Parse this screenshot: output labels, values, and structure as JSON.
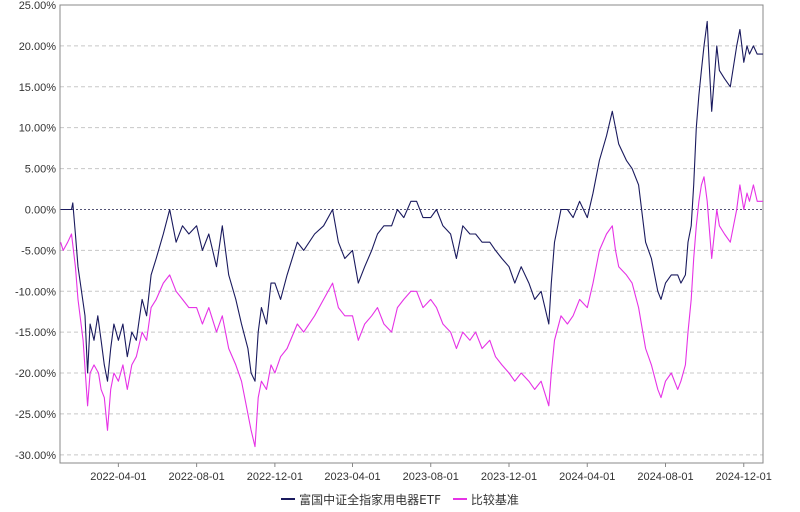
{
  "chart_data": {
    "type": "line",
    "title": "",
    "xlabel": "",
    "ylabel": "",
    "ylim": [
      -31,
      25
    ],
    "y_ticks": [
      25,
      20,
      15,
      10,
      5,
      0,
      -5,
      -10,
      -15,
      -20,
      -25,
      -30
    ],
    "y_tick_labels": [
      "25.00%",
      "20.00%",
      "15.00%",
      "10.00%",
      "5.00%",
      "0.00%",
      "-5.00%",
      "-10.00%",
      "-15.00%",
      "-20.00%",
      "-25.00%",
      "-30.00%"
    ],
    "xlim": [
      "2021-12-31",
      "2024-12-31"
    ],
    "x_tick_labels": [
      "2022-04-01",
      "2022-08-01",
      "2022-12-01",
      "2023-04-01",
      "2023-08-01",
      "2023-12-01",
      "2024-04-01",
      "2024-08-01",
      "2024-12-01"
    ],
    "grid": true,
    "legend_position": "bottom",
    "series": [
      {
        "name": "富国中证全指家用电器ETF",
        "color": "#1a1a5e",
        "points": [
          [
            "2022-01-01",
            0
          ],
          [
            "2022-01-18",
            0
          ],
          [
            "2022-01-20",
            0.8
          ],
          [
            "2022-01-24",
            -3
          ],
          [
            "2022-01-28",
            -7
          ],
          [
            "2022-02-08",
            -13
          ],
          [
            "2022-02-12",
            -20
          ],
          [
            "2022-02-16",
            -14
          ],
          [
            "2022-02-22",
            -16
          ],
          [
            "2022-02-28",
            -13
          ],
          [
            "2022-03-05",
            -16
          ],
          [
            "2022-03-10",
            -19
          ],
          [
            "2022-03-15",
            -21
          ],
          [
            "2022-03-20",
            -17
          ],
          [
            "2022-03-25",
            -14
          ],
          [
            "2022-04-01",
            -16
          ],
          [
            "2022-04-08",
            -14
          ],
          [
            "2022-04-15",
            -18
          ],
          [
            "2022-04-22",
            -15
          ],
          [
            "2022-04-29",
            -16
          ],
          [
            "2022-05-08",
            -11
          ],
          [
            "2022-05-15",
            -13
          ],
          [
            "2022-05-22",
            -8
          ],
          [
            "2022-05-30",
            -6
          ],
          [
            "2022-06-10",
            -3
          ],
          [
            "2022-06-20",
            0
          ],
          [
            "2022-06-30",
            -4
          ],
          [
            "2022-07-10",
            -2
          ],
          [
            "2022-07-20",
            -3
          ],
          [
            "2022-08-01",
            -2
          ],
          [
            "2022-08-10",
            -5
          ],
          [
            "2022-08-20",
            -3
          ],
          [
            "2022-09-01",
            -7
          ],
          [
            "2022-09-10",
            -2
          ],
          [
            "2022-09-20",
            -8
          ],
          [
            "2022-10-01",
            -11
          ],
          [
            "2022-10-10",
            -14
          ],
          [
            "2022-10-20",
            -17
          ],
          [
            "2022-10-25",
            -20
          ],
          [
            "2022-10-31",
            -21
          ],
          [
            "2022-11-05",
            -15
          ],
          [
            "2022-11-10",
            -12
          ],
          [
            "2022-11-18",
            -14
          ],
          [
            "2022-11-25",
            -9
          ],
          [
            "2022-12-01",
            -9
          ],
          [
            "2022-12-10",
            -11
          ],
          [
            "2022-12-20",
            -8
          ],
          [
            "2023-01-05",
            -4
          ],
          [
            "2023-01-15",
            -5
          ],
          [
            "2023-02-01",
            -3
          ],
          [
            "2023-02-15",
            -2
          ],
          [
            "2023-03-01",
            0
          ],
          [
            "2023-03-10",
            -4
          ],
          [
            "2023-03-20",
            -6
          ],
          [
            "2023-04-01",
            -5
          ],
          [
            "2023-04-10",
            -9
          ],
          [
            "2023-04-20",
            -7
          ],
          [
            "2023-05-01",
            -5
          ],
          [
            "2023-05-10",
            -3
          ],
          [
            "2023-05-20",
            -2
          ],
          [
            "2023-06-01",
            -2
          ],
          [
            "2023-06-10",
            0
          ],
          [
            "2023-06-20",
            -1
          ],
          [
            "2023-07-01",
            1
          ],
          [
            "2023-07-10",
            1
          ],
          [
            "2023-07-20",
            -1
          ],
          [
            "2023-08-01",
            -1
          ],
          [
            "2023-08-10",
            0
          ],
          [
            "2023-08-20",
            -2
          ],
          [
            "2023-09-01",
            -3
          ],
          [
            "2023-09-10",
            -6
          ],
          [
            "2023-09-20",
            -2
          ],
          [
            "2023-10-01",
            -3
          ],
          [
            "2023-10-10",
            -3
          ],
          [
            "2023-10-20",
            -4
          ],
          [
            "2023-11-01",
            -4
          ],
          [
            "2023-11-10",
            -5
          ],
          [
            "2023-11-20",
            -6
          ],
          [
            "2023-12-01",
            -7
          ],
          [
            "2023-12-10",
            -9
          ],
          [
            "2023-12-20",
            -7
          ],
          [
            "2024-01-01",
            -9
          ],
          [
            "2024-01-10",
            -11
          ],
          [
            "2024-01-20",
            -10
          ],
          [
            "2024-02-01",
            -14
          ],
          [
            "2024-02-05",
            -9
          ],
          [
            "2024-02-10",
            -4
          ],
          [
            "2024-02-20",
            0
          ],
          [
            "2024-03-01",
            0
          ],
          [
            "2024-03-10",
            -1
          ],
          [
            "2024-03-20",
            1
          ],
          [
            "2024-04-01",
            -1
          ],
          [
            "2024-04-10",
            2
          ],
          [
            "2024-04-20",
            6
          ],
          [
            "2024-05-01",
            9
          ],
          [
            "2024-05-10",
            12
          ],
          [
            "2024-05-15",
            10
          ],
          [
            "2024-05-20",
            8
          ],
          [
            "2024-06-01",
            6
          ],
          [
            "2024-06-10",
            5
          ],
          [
            "2024-06-20",
            3
          ],
          [
            "2024-07-01",
            -4
          ],
          [
            "2024-07-10",
            -6
          ],
          [
            "2024-07-20",
            -10
          ],
          [
            "2024-07-25",
            -11
          ],
          [
            "2024-08-01",
            -9
          ],
          [
            "2024-08-10",
            -8
          ],
          [
            "2024-08-20",
            -8
          ],
          [
            "2024-08-25",
            -9
          ],
          [
            "2024-09-01",
            -8
          ],
          [
            "2024-09-05",
            -4
          ],
          [
            "2024-09-10",
            -2
          ],
          [
            "2024-09-14",
            3
          ],
          [
            "2024-09-18",
            10
          ],
          [
            "2024-09-22",
            14
          ],
          [
            "2024-09-26",
            17
          ],
          [
            "2024-09-30",
            20
          ],
          [
            "2024-10-05",
            23
          ],
          [
            "2024-10-08",
            18
          ],
          [
            "2024-10-12",
            12
          ],
          [
            "2024-10-16",
            16
          ],
          [
            "2024-10-20",
            20
          ],
          [
            "2024-10-24",
            17
          ],
          [
            "2024-11-01",
            16
          ],
          [
            "2024-11-10",
            15
          ],
          [
            "2024-11-20",
            20
          ],
          [
            "2024-11-25",
            22
          ],
          [
            "2024-12-01",
            18
          ],
          [
            "2024-12-06",
            20
          ],
          [
            "2024-12-10",
            19
          ],
          [
            "2024-12-16",
            20
          ],
          [
            "2024-12-22",
            19
          ],
          [
            "2024-12-31",
            19
          ]
        ]
      },
      {
        "name": "比较基准",
        "color": "#e633e6",
        "points": [
          [
            "2022-01-01",
            -4
          ],
          [
            "2022-01-05",
            -5
          ],
          [
            "2022-01-12",
            -4
          ],
          [
            "2022-01-18",
            -3
          ],
          [
            "2022-01-24",
            -7
          ],
          [
            "2022-01-28",
            -11
          ],
          [
            "2022-02-05",
            -16
          ],
          [
            "2022-02-12",
            -24
          ],
          [
            "2022-02-16",
            -20
          ],
          [
            "2022-02-22",
            -19
          ],
          [
            "2022-03-01",
            -20
          ],
          [
            "2022-03-05",
            -22
          ],
          [
            "2022-03-10",
            -23
          ],
          [
            "2022-03-15",
            -27
          ],
          [
            "2022-03-20",
            -22
          ],
          [
            "2022-03-25",
            -20
          ],
          [
            "2022-04-01",
            -21
          ],
          [
            "2022-04-08",
            -19
          ],
          [
            "2022-04-15",
            -22
          ],
          [
            "2022-04-22",
            -19
          ],
          [
            "2022-04-29",
            -18
          ],
          [
            "2022-05-08",
            -15
          ],
          [
            "2022-05-15",
            -16
          ],
          [
            "2022-05-22",
            -12
          ],
          [
            "2022-05-30",
            -11
          ],
          [
            "2022-06-10",
            -9
          ],
          [
            "2022-06-20",
            -8
          ],
          [
            "2022-06-30",
            -10
          ],
          [
            "2022-07-10",
            -11
          ],
          [
            "2022-07-20",
            -12
          ],
          [
            "2022-08-01",
            -12
          ],
          [
            "2022-08-10",
            -14
          ],
          [
            "2022-08-20",
            -12
          ],
          [
            "2022-09-01",
            -15
          ],
          [
            "2022-09-10",
            -13
          ],
          [
            "2022-09-20",
            -17
          ],
          [
            "2022-10-01",
            -19
          ],
          [
            "2022-10-10",
            -21
          ],
          [
            "2022-10-20",
            -25
          ],
          [
            "2022-10-25",
            -27
          ],
          [
            "2022-10-31",
            -29
          ],
          [
            "2022-11-05",
            -23
          ],
          [
            "2022-11-10",
            -21
          ],
          [
            "2022-11-18",
            -22
          ],
          [
            "2022-11-25",
            -19
          ],
          [
            "2022-12-01",
            -20
          ],
          [
            "2022-12-10",
            -18
          ],
          [
            "2022-12-20",
            -17
          ],
          [
            "2023-01-05",
            -14
          ],
          [
            "2023-01-15",
            -15
          ],
          [
            "2023-02-01",
            -13
          ],
          [
            "2023-02-15",
            -11
          ],
          [
            "2023-03-01",
            -9
          ],
          [
            "2023-03-10",
            -12
          ],
          [
            "2023-03-20",
            -13
          ],
          [
            "2023-04-01",
            -13
          ],
          [
            "2023-04-10",
            -16
          ],
          [
            "2023-04-20",
            -14
          ],
          [
            "2023-05-01",
            -13
          ],
          [
            "2023-05-10",
            -12
          ],
          [
            "2023-05-20",
            -14
          ],
          [
            "2023-06-01",
            -15
          ],
          [
            "2023-06-10",
            -12
          ],
          [
            "2023-06-20",
            -11
          ],
          [
            "2023-07-01",
            -10
          ],
          [
            "2023-07-10",
            -10
          ],
          [
            "2023-07-20",
            -12
          ],
          [
            "2023-08-01",
            -11
          ],
          [
            "2023-08-10",
            -12
          ],
          [
            "2023-08-20",
            -14
          ],
          [
            "2023-09-01",
            -15
          ],
          [
            "2023-09-10",
            -17
          ],
          [
            "2023-09-20",
            -15
          ],
          [
            "2023-10-01",
            -16
          ],
          [
            "2023-10-10",
            -15
          ],
          [
            "2023-10-20",
            -17
          ],
          [
            "2023-11-01",
            -16
          ],
          [
            "2023-11-10",
            -18
          ],
          [
            "2023-11-20",
            -19
          ],
          [
            "2023-12-01",
            -20
          ],
          [
            "2023-12-10",
            -21
          ],
          [
            "2023-12-20",
            -20
          ],
          [
            "2024-01-01",
            -21
          ],
          [
            "2024-01-10",
            -22
          ],
          [
            "2024-01-20",
            -21
          ],
          [
            "2024-02-01",
            -24
          ],
          [
            "2024-02-05",
            -20
          ],
          [
            "2024-02-10",
            -16
          ],
          [
            "2024-02-20",
            -13
          ],
          [
            "2024-03-01",
            -14
          ],
          [
            "2024-03-10",
            -13
          ],
          [
            "2024-03-20",
            -11
          ],
          [
            "2024-04-01",
            -12
          ],
          [
            "2024-04-10",
            -9
          ],
          [
            "2024-04-20",
            -5
          ],
          [
            "2024-05-01",
            -3
          ],
          [
            "2024-05-10",
            -2
          ],
          [
            "2024-05-15",
            -5
          ],
          [
            "2024-05-20",
            -7
          ],
          [
            "2024-06-01",
            -8
          ],
          [
            "2024-06-10",
            -9
          ],
          [
            "2024-06-20",
            -12
          ],
          [
            "2024-07-01",
            -17
          ],
          [
            "2024-07-10",
            -19
          ],
          [
            "2024-07-20",
            -22
          ],
          [
            "2024-07-25",
            -23
          ],
          [
            "2024-08-01",
            -21
          ],
          [
            "2024-08-10",
            -20
          ],
          [
            "2024-08-20",
            -22
          ],
          [
            "2024-08-25",
            -21
          ],
          [
            "2024-09-01",
            -19
          ],
          [
            "2024-09-05",
            -15
          ],
          [
            "2024-09-10",
            -11
          ],
          [
            "2024-09-14",
            -6
          ],
          [
            "2024-09-18",
            -2
          ],
          [
            "2024-09-22",
            1
          ],
          [
            "2024-09-26",
            3
          ],
          [
            "2024-09-30",
            4
          ],
          [
            "2024-10-05",
            1
          ],
          [
            "2024-10-08",
            -2
          ],
          [
            "2024-10-12",
            -6
          ],
          [
            "2024-10-16",
            -3
          ],
          [
            "2024-10-20",
            0
          ],
          [
            "2024-10-24",
            -2
          ],
          [
            "2024-11-01",
            -3
          ],
          [
            "2024-11-10",
            -4
          ],
          [
            "2024-11-20",
            0
          ],
          [
            "2024-11-25",
            3
          ],
          [
            "2024-12-01",
            0
          ],
          [
            "2024-12-06",
            2
          ],
          [
            "2024-12-10",
            1
          ],
          [
            "2024-12-16",
            3
          ],
          [
            "2024-12-22",
            1
          ],
          [
            "2024-12-31",
            1
          ]
        ]
      }
    ]
  }
}
